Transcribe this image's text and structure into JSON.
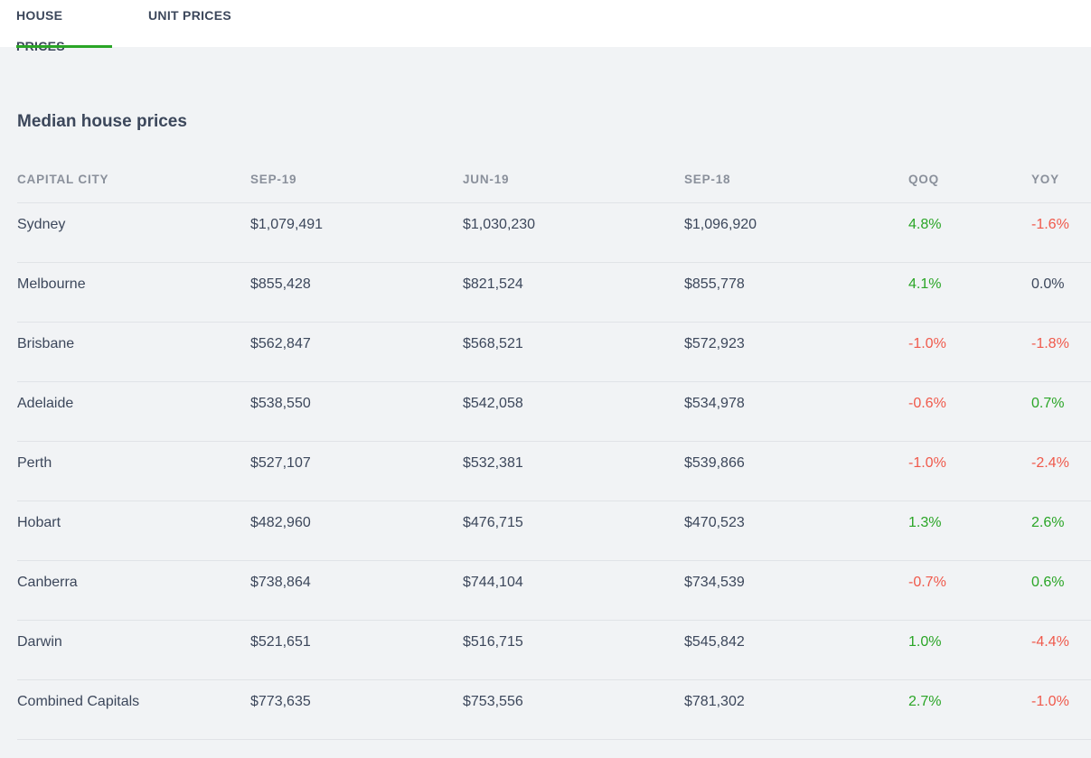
{
  "tabs": [
    {
      "label": "HOUSE PRICES",
      "active": true
    },
    {
      "label": "UNIT PRICES",
      "active": false
    }
  ],
  "section_title": "Median house prices",
  "table": {
    "headers": [
      "CAPITAL CITY",
      "SEP-19",
      "JUN-19",
      "SEP-18",
      "QOQ",
      "YOY"
    ],
    "rows": [
      [
        "Sydney",
        "$1,079,491",
        "$1,030,230",
        "$1,096,920",
        "4.8%",
        "-1.6%"
      ],
      [
        "Melbourne",
        "$855,428",
        "$821,524",
        "$855,778",
        "4.1%",
        "0.0%"
      ],
      [
        "Brisbane",
        "$562,847",
        "$568,521",
        "$572,923",
        "-1.0%",
        "-1.8%"
      ],
      [
        "Adelaide",
        "$538,550",
        "$542,058",
        "$534,978",
        "-0.6%",
        "0.7%"
      ],
      [
        "Perth",
        "$527,107",
        "$532,381",
        "$539,866",
        "-1.0%",
        "-2.4%"
      ],
      [
        "Hobart",
        "$482,960",
        "$476,715",
        "$470,523",
        "1.3%",
        "2.6%"
      ],
      [
        "Canberra",
        "$738,864",
        "$744,104",
        "$734,539",
        "-0.7%",
        "0.6%"
      ],
      [
        "Darwin",
        "$521,651",
        "$516,715",
        "$545,842",
        "1.0%",
        "-4.4%"
      ],
      [
        "Combined Capitals",
        "$773,635",
        "$753,556",
        "$781,302",
        "2.7%",
        "-1.0%"
      ]
    ]
  },
  "colors": {
    "accent": "#2aa526",
    "positive": "#2aa526",
    "negative": "#f0594b",
    "text": "#3c475b",
    "header_text": "#8a909b",
    "background": "#f1f3f5"
  }
}
